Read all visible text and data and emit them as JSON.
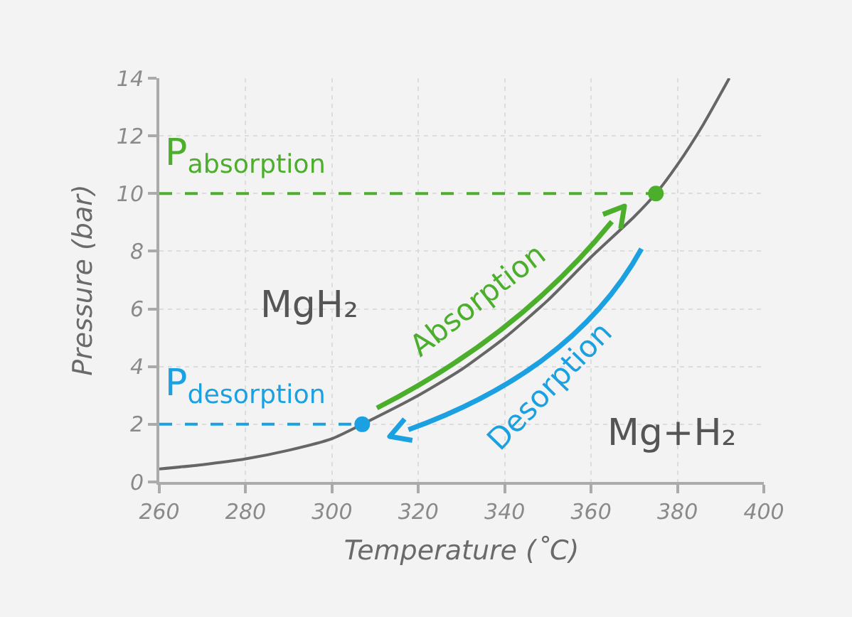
{
  "chart_data": {
    "type": "line",
    "xlabel": "Temperature (˚C)",
    "ylabel": "Pressure (bar)",
    "xlim": [
      260,
      400
    ],
    "xticks": [
      260,
      280,
      300,
      320,
      340,
      360,
      380,
      400
    ],
    "ylim": [
      0,
      14
    ],
    "yticks": [
      0,
      2,
      4,
      6,
      8,
      10,
      12,
      14
    ],
    "grid": true,
    "series": [
      {
        "color": "#666666",
        "line_style": "solid",
        "marker": "none",
        "x": [
          260,
          270,
          280,
          290,
          300,
          307,
          320,
          330,
          340,
          350,
          360,
          370,
          375,
          380,
          386,
          392
        ],
        "values": [
          0.45,
          0.6,
          0.8,
          1.1,
          1.5,
          2,
          3,
          3.9,
          5,
          6.3,
          7.8,
          9.2,
          10,
          11,
          12.4,
          14
        ]
      },
      {
        "name": "P$_{absorption}$",
        "color": "#4caf2b",
        "line_style": "dashed",
        "marker": "none",
        "x": [
          260,
          375
        ],
        "values": [
          10,
          10
        ]
      },
      {
        "name": "P$_{desorption}$",
        "color": "#1ba1e2",
        "line_style": "dashed",
        "marker": "none",
        "x": [
          260,
          307
        ],
        "values": [
          2,
          2
        ]
      },
      {
        "type": "scatter",
        "color": "#4caf2b",
        "marker": "circle",
        "x": [
          375
        ],
        "values": [
          10
        ]
      },
      {
        "type": "scatter",
        "color": "#1ba1e2",
        "marker": "circle",
        "x": [
          307
        ],
        "values": [
          2
        ]
      }
    ],
    "annotations": [
      "MgH₂",
      "Mg+H₂",
      "Absorption",
      "Desorption"
    ]
  }
}
